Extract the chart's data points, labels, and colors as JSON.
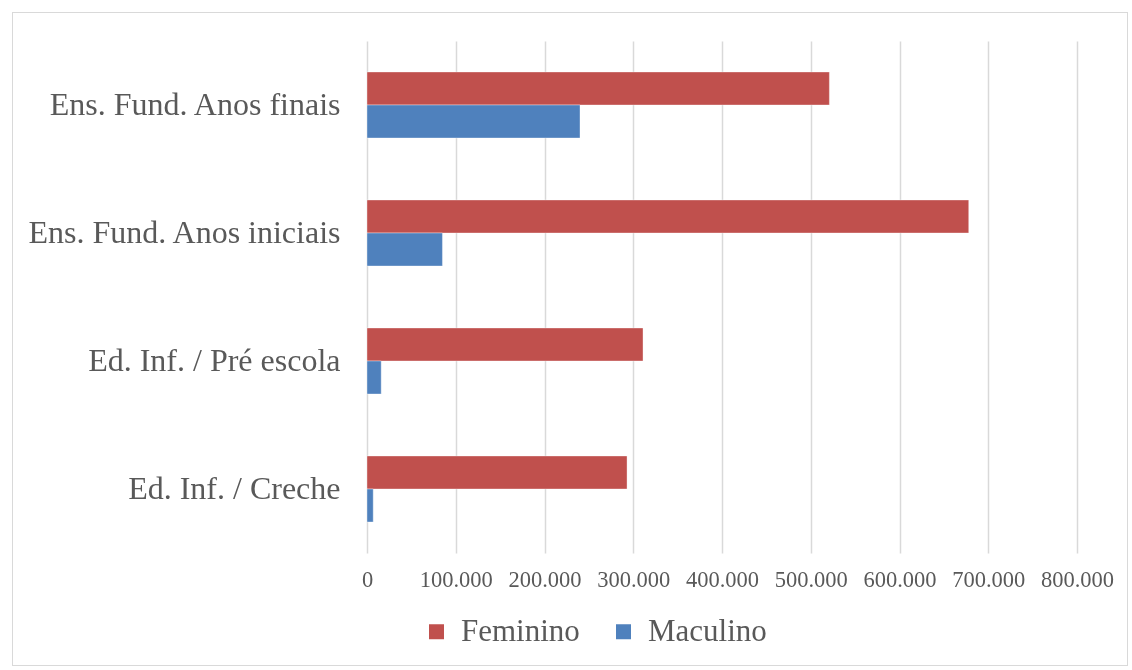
{
  "chart_data": {
    "type": "bar",
    "orientation": "horizontal",
    "categories": [
      "Ens. Fund. Anos finais",
      "Ens. Fund. Anos iniciais",
      "Ed. Inf. / Pré escola",
      "Ed. Inf. / Creche"
    ],
    "series": [
      {
        "name": "Feminino",
        "color": "#c0504d",
        "values": [
          521000,
          678000,
          311000,
          293000
        ]
      },
      {
        "name": "Maculino",
        "color": "#4f81bd",
        "values": [
          240000,
          85000,
          16000,
          7000
        ]
      }
    ],
    "xlim": [
      0,
      800000
    ],
    "xticks": [
      0,
      {
        "value": 100000,
        "label": "100.000"
      },
      {
        "value": 200000,
        "label": "200.000"
      },
      {
        "value": 300000,
        "label": "300.000"
      },
      {
        "value": 400000,
        "label": "400.000"
      },
      {
        "value": 500000,
        "label": "500.000"
      },
      {
        "value": 600000,
        "label": "600.000"
      },
      {
        "value": 700000,
        "label": "700.000"
      },
      {
        "value": 800000,
        "label": "800.000"
      }
    ],
    "grid": true,
    "legend": "bottom"
  }
}
